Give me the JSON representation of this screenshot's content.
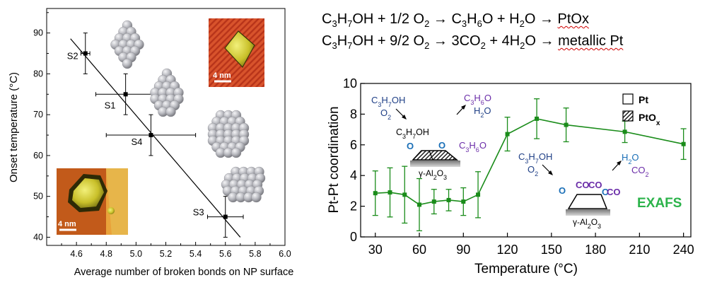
{
  "equations": [
    {
      "lhs": [
        "C",
        "3",
        "H",
        "7",
        "OH + 1/2 O",
        "2",
        " → C",
        "3",
        "H",
        "6",
        "O + H",
        "2",
        "O"
      ],
      "product": "PtOx"
    },
    {
      "lhs": [
        "C",
        "3",
        "H",
        "7",
        "OH + 9/2 O",
        "2",
        " → 3CO",
        "2",
        " + 4H",
        "2",
        "O"
      ],
      "product": "metallic Pt"
    }
  ],
  "chart_data": [
    {
      "type": "scatter",
      "title": "",
      "xlabel": "Average number of broken bonds on NP surface",
      "ylabel": "Onset temperature (°C)",
      "xlim": [
        4.4,
        6.0
      ],
      "ylim": [
        38,
        96
      ],
      "xticks": [
        "4.6",
        "4.8",
        "5.0",
        "5.2",
        "5.4",
        "5.6",
        "5.8",
        "6.0"
      ],
      "yticks": [
        "40",
        "50",
        "60",
        "70",
        "80",
        "90"
      ],
      "points": [
        {
          "name": "S2",
          "x": 4.66,
          "y": 85,
          "xerr": 0.03,
          "yerr": 5
        },
        {
          "name": "S1",
          "x": 4.93,
          "y": 75,
          "xerr": 0.2,
          "yerr": 5
        },
        {
          "name": "S4",
          "x": 5.1,
          "y": 65,
          "xerr": 0.3,
          "yerr": 5
        },
        {
          "name": "S3",
          "x": 5.6,
          "y": 45,
          "xerr": 0.12,
          "yerr": 5
        }
      ],
      "fit_line": {
        "x": [
          4.56,
          5.7
        ],
        "y": [
          88.6,
          40
        ]
      },
      "insets": [
        {
          "scale_label": "4 nm"
        },
        {
          "scale_label": "4 nm"
        }
      ]
    },
    {
      "type": "line",
      "title": "",
      "xlabel": "Temperature (°C)",
      "ylabel": "Pt-Pt coordination",
      "xlim": [
        20,
        245
      ],
      "ylim": [
        0,
        10
      ],
      "xticks": [
        "30",
        "60",
        "90",
        "120",
        "150",
        "180",
        "210",
        "240"
      ],
      "yticks": [
        "0",
        "2",
        "4",
        "6",
        "8",
        "10"
      ],
      "series": [
        {
          "name": "Pt",
          "color": "#1a8c1a",
          "x": [
            30,
            40,
            50,
            60,
            70,
            80,
            90,
            100,
            120,
            140,
            160,
            200,
            240
          ],
          "y": [
            2.85,
            2.9,
            2.75,
            2.1,
            2.3,
            2.4,
            2.3,
            2.75,
            6.7,
            7.7,
            7.3,
            6.85,
            6.05
          ],
          "err": [
            1.45,
            1.6,
            1.85,
            1.7,
            0.8,
            0.7,
            0.9,
            1.5,
            1.1,
            1.3,
            1.1,
            0.7,
            1.0
          ]
        }
      ],
      "legend": {
        "position": "top-right",
        "items": [
          "Pt",
          "PtOx"
        ]
      },
      "annotations": {
        "reactants_left": [
          "C3H7OH",
          "O2"
        ],
        "products_left": [
          "C3H6O",
          "H2O"
        ],
        "surface_left": [
          "C3H7OH",
          "O",
          "O",
          "C3H6O",
          "γ-Al2O3"
        ],
        "reactants_right": [
          "C3H7OH",
          "O2"
        ],
        "products_right": [
          "H2O",
          "CO2"
        ],
        "surface_right": [
          "O",
          "CO",
          "CO",
          "O",
          "CO",
          "γ-Al2O3"
        ],
        "technique": "EXAFS"
      }
    }
  ]
}
